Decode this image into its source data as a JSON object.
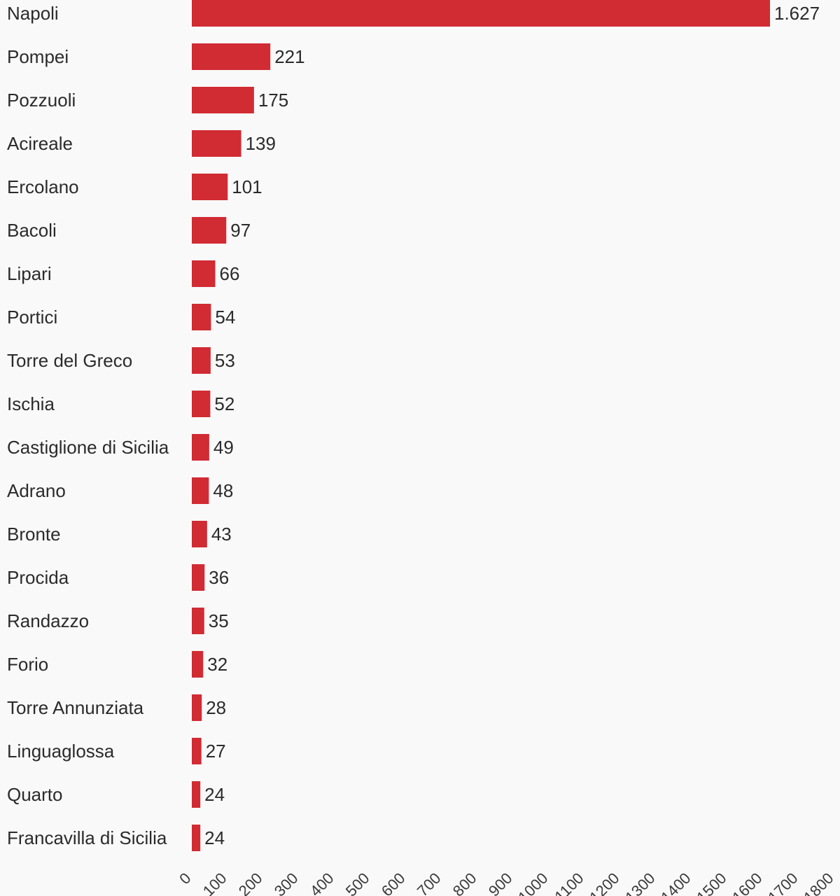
{
  "colors": {
    "bar": "#d12b33",
    "background": "#f9f9f9",
    "text": "#2b2b2b"
  },
  "chart_data": {
    "type": "bar",
    "orientation": "horizontal",
    "categories": [
      "Napoli",
      "Pompei",
      "Pozzuoli",
      "Acireale",
      "Ercolano",
      "Bacoli",
      "Lipari",
      "Portici",
      "Torre del Greco",
      "Ischia",
      "Castiglione di Sicilia",
      "Adrano",
      "Bronte",
      "Procida",
      "Randazzo",
      "Forio",
      "Torre Annunziata",
      "Linguaglossa",
      "Quarto",
      "Francavilla di Sicilia"
    ],
    "values": [
      1627,
      221,
      175,
      139,
      101,
      97,
      66,
      54,
      53,
      52,
      49,
      48,
      43,
      36,
      35,
      32,
      28,
      27,
      24,
      24
    ],
    "value_labels": [
      "1.627",
      "221",
      "175",
      "139",
      "101",
      "97",
      "66",
      "54",
      "53",
      "52",
      "49",
      "48",
      "43",
      "36",
      "35",
      "32",
      "28",
      "27",
      "24",
      "24"
    ],
    "xlim": [
      0,
      1800
    ],
    "x_ticks": [
      0,
      100,
      200,
      300,
      400,
      500,
      600,
      700,
      800,
      900,
      1000,
      1100,
      1200,
      1300,
      1400,
      1500,
      1600,
      1700,
      1800
    ],
    "grid": false,
    "legend": "none"
  }
}
